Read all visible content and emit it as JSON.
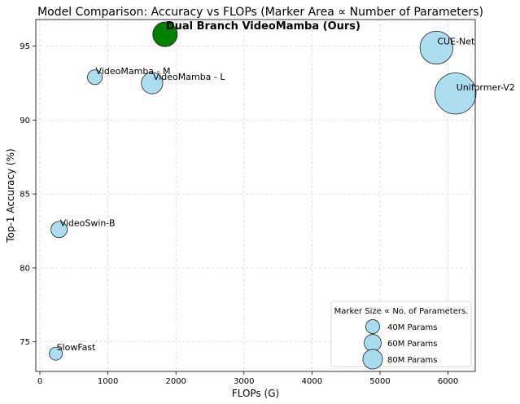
{
  "chart_data": {
    "type": "scatter",
    "title": "Model Comparison: Accuracy vs FLOPs (Marker Area ∝ Number of Parameters)",
    "xlabel": "FLOPs (G)",
    "ylabel": "Top-1 Accuracy (%)",
    "xlim": [
      -60,
      6400
    ],
    "ylim": [
      73.0,
      96.8
    ],
    "xticks": [
      0,
      1000,
      2000,
      3000,
      4000,
      5000,
      6000
    ],
    "yticks": [
      75,
      80,
      85,
      90,
      95
    ],
    "grid": true,
    "grid_style": "dashed",
    "points": [
      {
        "label": "SlowFast",
        "x": 234,
        "y": 74.2,
        "params": 35,
        "color": "#a8dcef",
        "highlight": false
      },
      {
        "label": "VideoSwin-B",
        "x": 282,
        "y": 82.6,
        "params": 55,
        "color": "#a8dcef",
        "highlight": false
      },
      {
        "label": "VideoMamba - M",
        "x": 808,
        "y": 92.9,
        "params": 45,
        "color": "#a8dcef",
        "highlight": false
      },
      {
        "label": "VideoMamba - L",
        "x": 1650,
        "y": 92.5,
        "params": 95,
        "color": "#a8dcef",
        "highlight": false
      },
      {
        "label": "Dual Branch VideoMamba (Ours)",
        "x": 1840,
        "y": 95.8,
        "params": 125,
        "color": "#008000",
        "highlight": true
      },
      {
        "label": "CUE-Net",
        "x": 5830,
        "y": 94.9,
        "params": 225,
        "color": "#a8dcef",
        "highlight": false
      },
      {
        "label": "Uniformer-V2",
        "x": 6110,
        "y": 91.8,
        "params": 350,
        "color": "#a8dcef",
        "highlight": false
      }
    ],
    "legend": {
      "title": "Marker Size ∝ No. of Parameters.",
      "position": "lower-right",
      "entries": [
        {
          "label": "40M Params",
          "params": 40
        },
        {
          "label": "60M Params",
          "params": 60
        },
        {
          "label": "80M Params",
          "params": 80
        }
      ]
    }
  }
}
